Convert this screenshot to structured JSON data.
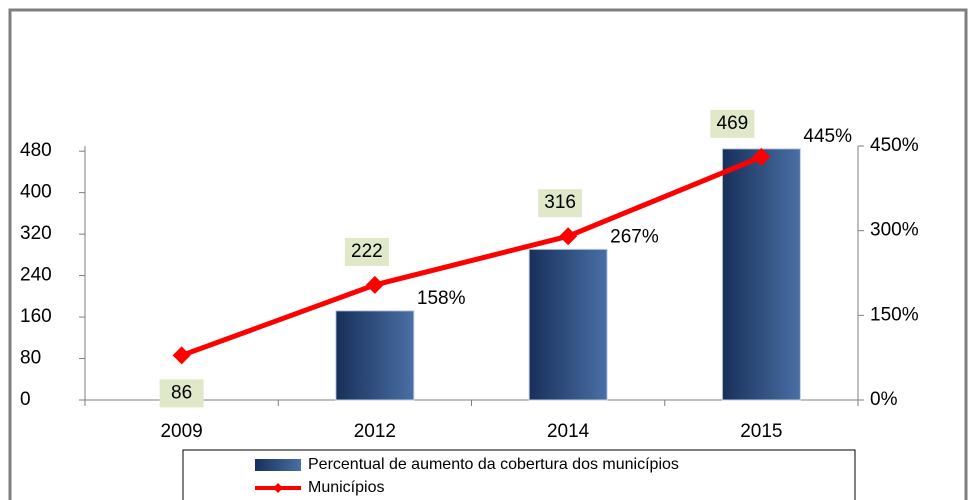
{
  "chart_data": {
    "type": "bar-line",
    "categories": [
      "2009",
      "2012",
      "2014",
      "2015"
    ],
    "series": [
      {
        "name": "Percentual de aumento da cobertura dos municípios",
        "type": "bar",
        "axis": "y2",
        "color": "#2a4a7a",
        "values": [
          null,
          158,
          267,
          445
        ],
        "value_labels": [
          null,
          "158%",
          "267%",
          "445%"
        ]
      },
      {
        "name": "Municípios",
        "type": "line",
        "axis": "y",
        "color": "#ff0000",
        "values": [
          86,
          222,
          316,
          469
        ]
      }
    ],
    "ylim": [
      0,
      490
    ],
    "yticks": [
      0,
      80,
      160,
      240,
      320,
      400,
      480
    ],
    "y2lim": [
      0,
      450
    ],
    "y2ticks": [
      {
        "value": 0,
        "label": "0%"
      },
      {
        "value": 150,
        "label": "150%"
      },
      {
        "value": 300,
        "label": "300%"
      },
      {
        "value": 450,
        "label": "450%"
      }
    ]
  }
}
